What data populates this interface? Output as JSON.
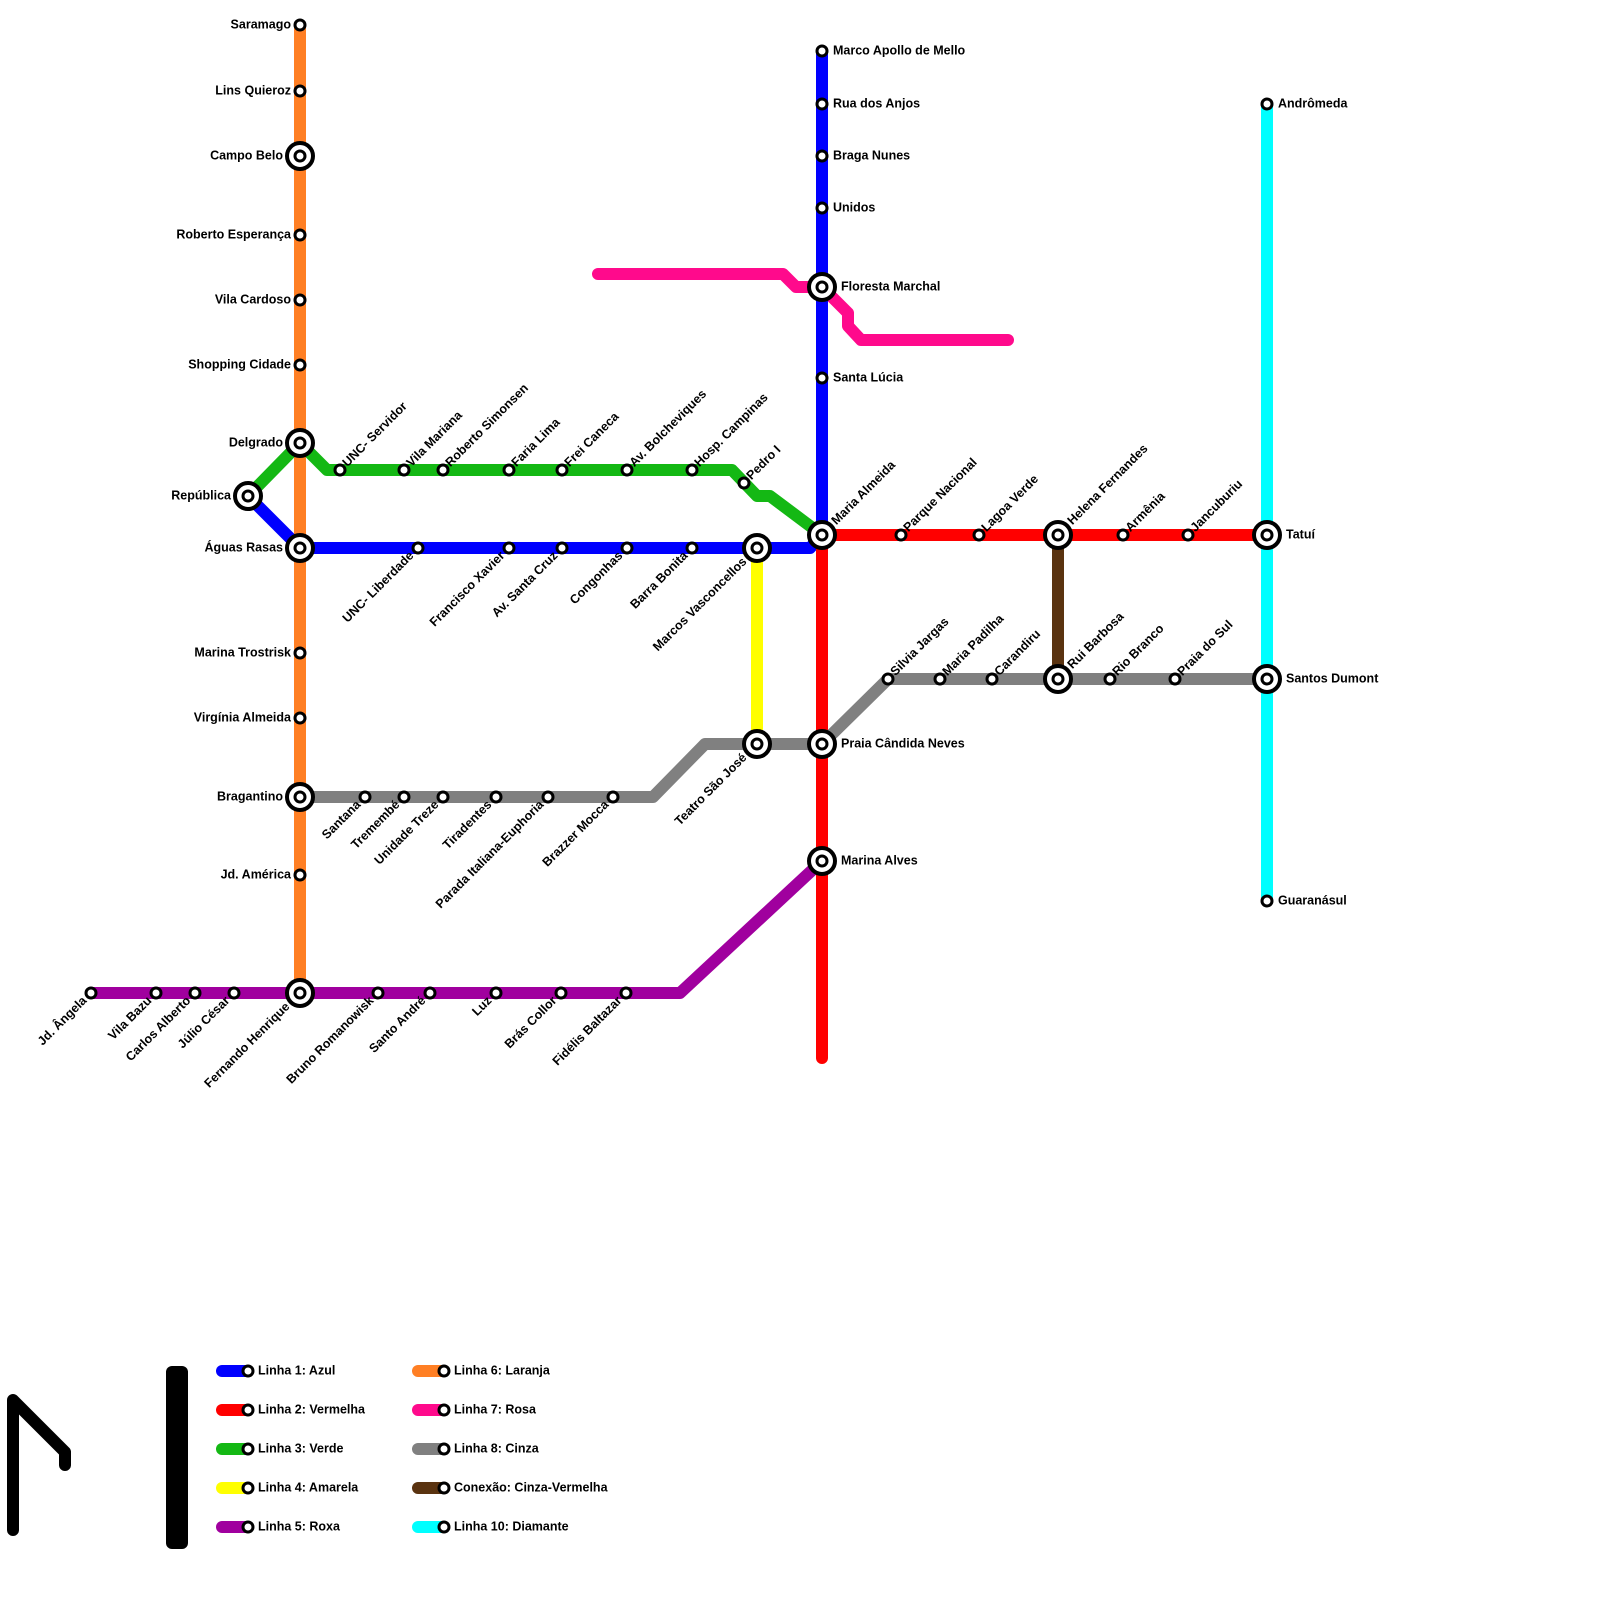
{
  "stations": [
    "Saramago",
    "Lins Quieroz",
    "Campo Belo",
    "Roberto Esperança",
    "Vila Cardoso",
    "Shopping Cidade",
    "Delgrado",
    "Águas Rasas",
    "Marina Trostrisk",
    "Virgínia Almeida",
    "Bragantino",
    "Jd. América",
    "Fernando Henrique",
    "República",
    "UNC- Servidor",
    "Vila Mariana",
    "Roberto Simonsen",
    "Faria Lima",
    "Frei Caneca",
    "Av. Bolcheviques",
    "Hosp. Campinas",
    "Pedro I",
    "Marco Apollo de Mello",
    "Rua dos Anjos",
    "Braga Nunes",
    "Unidos",
    "Floresta Marchal",
    "Santa Lúcia",
    "Maria Almeida",
    "UNC- Liberdade",
    "Francisco Xavier",
    "Av. Santa Cruz",
    "Congonhas",
    "Barra Bonita",
    "Marcos Vasconcellos",
    "Parque Nacional",
    "Lagoa Verde",
    "Helena Fernandes",
    "Armênia",
    "Jancuburiu",
    "Tatuí",
    "Praia Cândida Neves",
    "Marina Alves",
    "Teatro São José",
    "Santana",
    "Tremembé",
    "Unidade Treze",
    "Tiradentes",
    "Parada Italiana-Euphoria",
    "Brazzer Mocca",
    "Silvia Jargas",
    "Maria Padilha",
    "Carandiru",
    "Rui Barbosa",
    "Rio Branco",
    "Praia do Sul",
    "Santos Dumont",
    "Andrômeda",
    "Guaranásul",
    "Jd. Ângela",
    "Vila Bazu",
    "Carlos Alberto",
    "Júlio César",
    "Bruno Romanowisk",
    "Santo André",
    "Luz",
    "Brás Collor",
    "Fidélis Baltazar"
  ],
  "legend": [
    {
      "label": "Linha 1: Azul",
      "color": "#0000ff"
    },
    {
      "label": "Linha 2: Vermelha",
      "color": "#ff0000"
    },
    {
      "label": "Linha 3: Verde",
      "color": "#14b814"
    },
    {
      "label": "Linha 4: Amarela",
      "color": "#ffff00"
    },
    {
      "label": "Linha 5: Roxa",
      "color": "#a0009e"
    },
    {
      "label": "Linha 6: Laranja",
      "color": "#ff7f24"
    },
    {
      "label": "Linha 7: Rosa",
      "color": "#ff0a8c"
    },
    {
      "label": "Linha 8: Cinza",
      "color": "#808080"
    },
    {
      "label": "Conexão: Cinza-Vermelha",
      "color": "#5a3310"
    },
    {
      "label": "Linha 10: Diamante",
      "color": "#00ffff"
    }
  ]
}
